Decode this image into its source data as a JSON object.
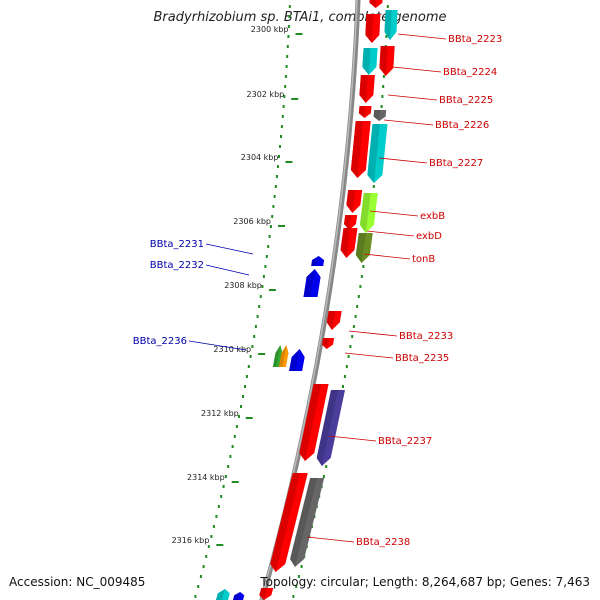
{
  "title": "Bradyrhizobium sp. BTAi1, complete genome",
  "footer": {
    "accession": "Accession: NC_009485",
    "summary": "Topology: circular; Length: 8,264,687 bp; Genes: 7,463"
  },
  "scale_ticks": [
    "2300 kbp",
    "2302 kbp",
    "2304 kbp",
    "2306 kbp",
    "2308 kbp",
    "2310 kbp",
    "2312 kbp",
    "2314 kbp",
    "2316 kbp"
  ],
  "forward_gene_labels": [
    "BBta_2223",
    "BBta_2224",
    "BBta_2225",
    "BBta_2226",
    "BBta_2227",
    "exbB",
    "exbD",
    "tonB",
    "BBta_2233",
    "BBta_2235",
    "BBta_2237",
    "BBta_2238"
  ],
  "reverse_gene_labels": [
    "BBta_2231",
    "BBta_2232",
    "BBta_2236"
  ],
  "colors": {
    "forward_label": "#cc0000",
    "reverse_label": "#0000aa",
    "cds_red": "#ff0000",
    "cds_cyan": "#00cccc",
    "cds_blue": "#0000ee",
    "cds_purple": "#4b3d9c",
    "cds_gray": "#666666",
    "cds_lime": "#99ff33",
    "cds_olive": "#6b8e23",
    "cds_green": "#33aa33",
    "cds_orange": "#ff9900",
    "backbone": "#888888",
    "gc_dots": "#228B22"
  }
}
